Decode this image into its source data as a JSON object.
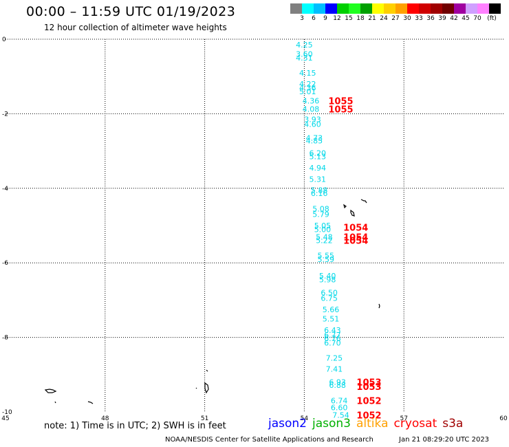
{
  "header": {
    "title": "00:00 – 11:59 UTC 01/19/2023",
    "subtitle": "12 hour collection of altimeter wave heights"
  },
  "legend": {
    "swatches": [
      "#808080",
      "#00ffff",
      "#00bfff",
      "#0000ff",
      "#00d000",
      "#20ff20",
      "#00a000",
      "#ffff00",
      "#ffd000",
      "#ffa000",
      "#ff0000",
      "#d00000",
      "#a00000",
      "#700000",
      "#a000a0",
      "#d0a0ff",
      "#ff80ff",
      "#000000"
    ],
    "labels": [
      "3",
      "6",
      "9",
      "12",
      "15",
      "18",
      "21",
      "24",
      "27",
      "30",
      "33",
      "36",
      "39",
      "42",
      "45",
      "70"
    ],
    "unit": "(ft)"
  },
  "chart_data": {
    "type": "scatter",
    "xlim": [
      45,
      60
    ],
    "ylim": [
      -10,
      0
    ],
    "x_ticks": [
      "45",
      "48",
      "51",
      "54",
      "57",
      "60"
    ],
    "y_ticks": [
      "0",
      "-2",
      "-4",
      "-6",
      "-8",
      "-10"
    ],
    "grid": true,
    "wave_heights": [
      {
        "lon": 54.0,
        "lat": -0.15,
        "text": "4.25"
      },
      {
        "lon": 54.0,
        "lat": -0.4,
        "text": "3.60"
      },
      {
        "lon": 54.0,
        "lat": -0.5,
        "text": "4.31"
      },
      {
        "lon": 54.1,
        "lat": -0.9,
        "text": "4.15"
      },
      {
        "lon": 54.1,
        "lat": -1.2,
        "text": "4.22"
      },
      {
        "lon": 54.1,
        "lat": -1.3,
        "text": "4.36"
      },
      {
        "lon": 54.1,
        "lat": -1.4,
        "text": "5.01"
      },
      {
        "lon": 54.2,
        "lat": -1.65,
        "text": "4.36"
      },
      {
        "lon": 54.2,
        "lat": -1.87,
        "text": "4.08"
      },
      {
        "lon": 54.25,
        "lat": -2.15,
        "text": "3.93"
      },
      {
        "lon": 54.25,
        "lat": -2.28,
        "text": "4.60"
      },
      {
        "lon": 54.3,
        "lat": -2.65,
        "text": "4.73"
      },
      {
        "lon": 54.3,
        "lat": -2.72,
        "text": "4.85"
      },
      {
        "lon": 54.4,
        "lat": -3.05,
        "text": "6.20"
      },
      {
        "lon": 54.4,
        "lat": -3.15,
        "text": "5.13"
      },
      {
        "lon": 54.4,
        "lat": -3.45,
        "text": "4.94"
      },
      {
        "lon": 54.4,
        "lat": -3.75,
        "text": "5.31"
      },
      {
        "lon": 54.45,
        "lat": -4.05,
        "text": "5.88"
      },
      {
        "lon": 54.45,
        "lat": -4.13,
        "text": "6.16"
      },
      {
        "lon": 54.5,
        "lat": -4.55,
        "text": "5.08"
      },
      {
        "lon": 54.5,
        "lat": -4.7,
        "text": "5.79"
      },
      {
        "lon": 54.55,
        "lat": -5.0,
        "text": "5.05"
      },
      {
        "lon": 54.55,
        "lat": -5.1,
        "text": "5.00"
      },
      {
        "lon": 54.6,
        "lat": -5.3,
        "text": "5.48"
      },
      {
        "lon": 54.6,
        "lat": -5.4,
        "text": "5.22"
      },
      {
        "lon": 54.65,
        "lat": -5.8,
        "text": "5.55"
      },
      {
        "lon": 54.65,
        "lat": -5.9,
        "text": "5.59"
      },
      {
        "lon": 54.7,
        "lat": -6.35,
        "text": "5.40"
      },
      {
        "lon": 54.7,
        "lat": -6.45,
        "text": "5.98"
      },
      {
        "lon": 54.75,
        "lat": -6.8,
        "text": "6.50"
      },
      {
        "lon": 54.75,
        "lat": -6.95,
        "text": "6.75"
      },
      {
        "lon": 54.8,
        "lat": -7.25,
        "text": "5.66"
      },
      {
        "lon": 54.8,
        "lat": -7.5,
        "text": "5.51"
      },
      {
        "lon": 54.85,
        "lat": -7.8,
        "text": "6.43"
      },
      {
        "lon": 54.85,
        "lat": -7.93,
        "text": "6.77"
      },
      {
        "lon": 54.85,
        "lat": -8.03,
        "text": "6.76"
      },
      {
        "lon": 54.85,
        "lat": -8.15,
        "text": "6.70"
      },
      {
        "lon": 54.9,
        "lat": -8.55,
        "text": "7.25"
      },
      {
        "lon": 54.9,
        "lat": -8.85,
        "text": "7.41"
      },
      {
        "lon": 55.0,
        "lat": -9.2,
        "text": "6.93"
      },
      {
        "lon": 55.0,
        "lat": -9.28,
        "text": "6.88"
      },
      {
        "lon": 55.05,
        "lat": -9.7,
        "text": "6.74"
      },
      {
        "lon": 55.05,
        "lat": -9.88,
        "text": "6.60"
      },
      {
        "lon": 55.1,
        "lat": -10.08,
        "text": "7.54"
      }
    ],
    "pressure_labels": [
      {
        "lon": 55.1,
        "lat": -1.65,
        "text": "1055"
      },
      {
        "lon": 55.1,
        "lat": -1.87,
        "text": "1055"
      },
      {
        "lon": 55.55,
        "lat": -5.05,
        "text": "1054"
      },
      {
        "lon": 55.55,
        "lat": -5.3,
        "text": "1054"
      },
      {
        "lon": 55.55,
        "lat": -5.4,
        "text": "1054"
      },
      {
        "lon": 55.95,
        "lat": -9.2,
        "text": "1053"
      },
      {
        "lon": 55.95,
        "lat": -9.32,
        "text": "1053"
      },
      {
        "lon": 55.95,
        "lat": -9.7,
        "text": "1052"
      },
      {
        "lon": 55.95,
        "lat": -10.08,
        "text": "1052"
      }
    ],
    "label_colors": {
      "wave_heights": "#00d8e8",
      "pressure": "#ff0000"
    }
  },
  "footer": {
    "note": "note: 1) Time is in UTC; 2) SWH is in feet",
    "missions": [
      {
        "name": "jason2",
        "color": "#0000ff"
      },
      {
        "name": "jason3",
        "color": "#00b000"
      },
      {
        "name": "altika",
        "color": "#ffa000"
      },
      {
        "name": "cryosat",
        "color": "#ff0000"
      },
      {
        "name": "s3a",
        "color": "#a00000"
      }
    ],
    "credit": "NOAA/NESDIS Center for Satellite Applications and Research",
    "timestamp": "Jan 21 08:29:20 UTC 2023"
  }
}
